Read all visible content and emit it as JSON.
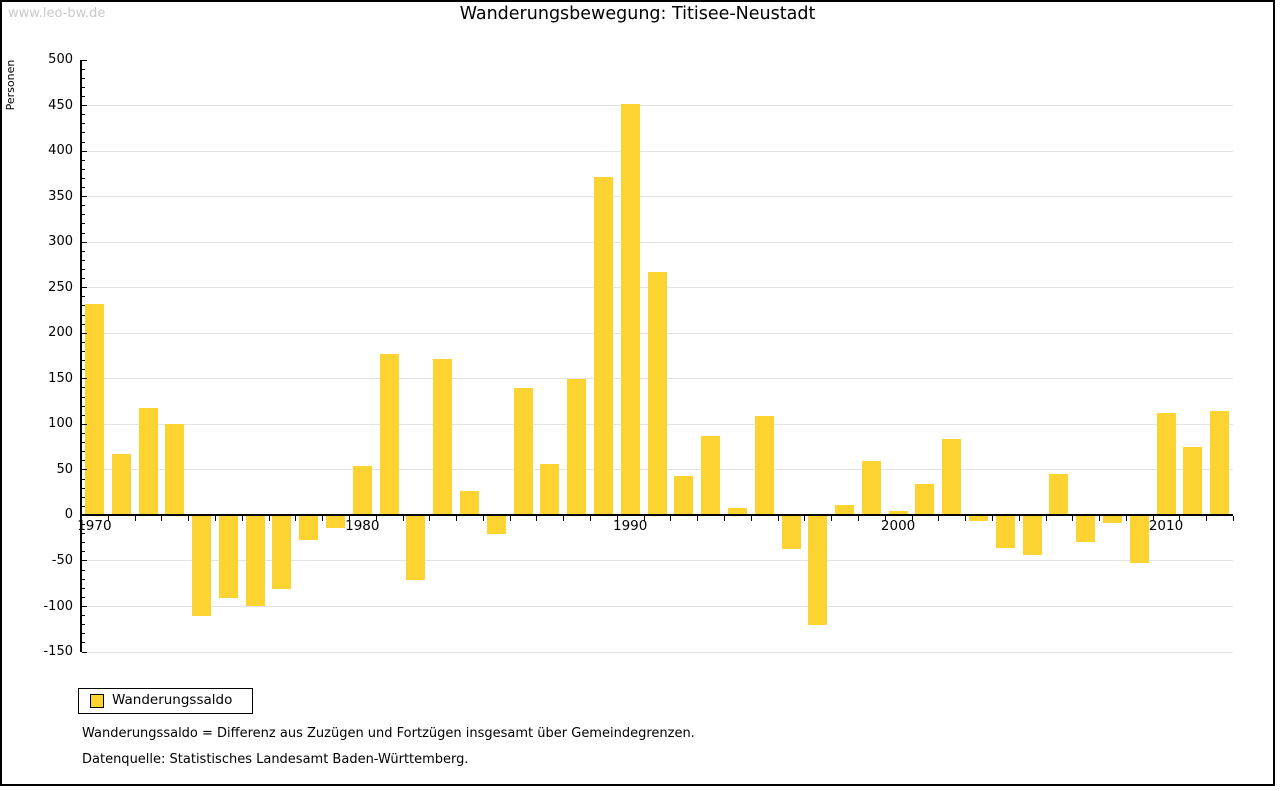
{
  "watermark": "www.leo-bw.de",
  "title": "Wanderungsbewegung: Titisee-Neustadt",
  "legend": {
    "label": "Wanderungssaldo",
    "swatch_color": "#fcd330"
  },
  "footnotes": {
    "definition": "Wanderungssaldo = Differenz aus Zuzügen und Fortzügen insgesamt über Gemeindegrenzen.",
    "source": "Datenquelle: Statistisches Landesamt Baden-Württemberg."
  },
  "colors": {
    "bar": "#fcd330",
    "grid": "#e3e3e3",
    "axis": "#000000",
    "watermark": "#c9c9c9",
    "frame_shadow": "#6e6e6e",
    "background": "#ffffff"
  },
  "chart_data": {
    "type": "bar",
    "title": "Wanderungsbewegung: Titisee-Neustadt",
    "xlabel": "",
    "ylabel": "Personen",
    "series": [
      {
        "name": "Wanderungssaldo",
        "values": [
          232,
          67,
          118,
          100,
          -110,
          -91,
          -100,
          -81,
          -27,
          -14,
          54,
          177,
          -71,
          172,
          27,
          -20,
          140,
          57,
          150,
          372,
          452,
          267,
          43,
          87,
          8,
          109,
          -37,
          -120,
          12,
          60,
          5,
          34,
          84,
          -6,
          -36,
          -43,
          46,
          -29,
          -8,
          -52,
          112,
          75,
          115
        ]
      }
    ],
    "x": [
      1970,
      1971,
      1972,
      1973,
      1974,
      1975,
      1976,
      1977,
      1978,
      1979,
      1980,
      1981,
      1982,
      1983,
      1984,
      1985,
      1986,
      1987,
      1988,
      1989,
      1990,
      1991,
      1992,
      1993,
      1994,
      1995,
      1996,
      1997,
      1998,
      1999,
      2000,
      2001,
      2002,
      2003,
      2004,
      2005,
      2006,
      2007,
      2008,
      2009,
      2010,
      2011,
      2012
    ],
    "xticks": [
      1970,
      1980,
      1990,
      2000,
      2010
    ],
    "yticks": [
      500,
      450,
      400,
      350,
      300,
      250,
      200,
      150,
      100,
      50,
      0,
      -50,
      -100,
      -150
    ],
    "ylim": [
      -150,
      500
    ],
    "ytick_minor_step": 10,
    "grid": "horizontal",
    "legend_position": "bottom-left"
  }
}
